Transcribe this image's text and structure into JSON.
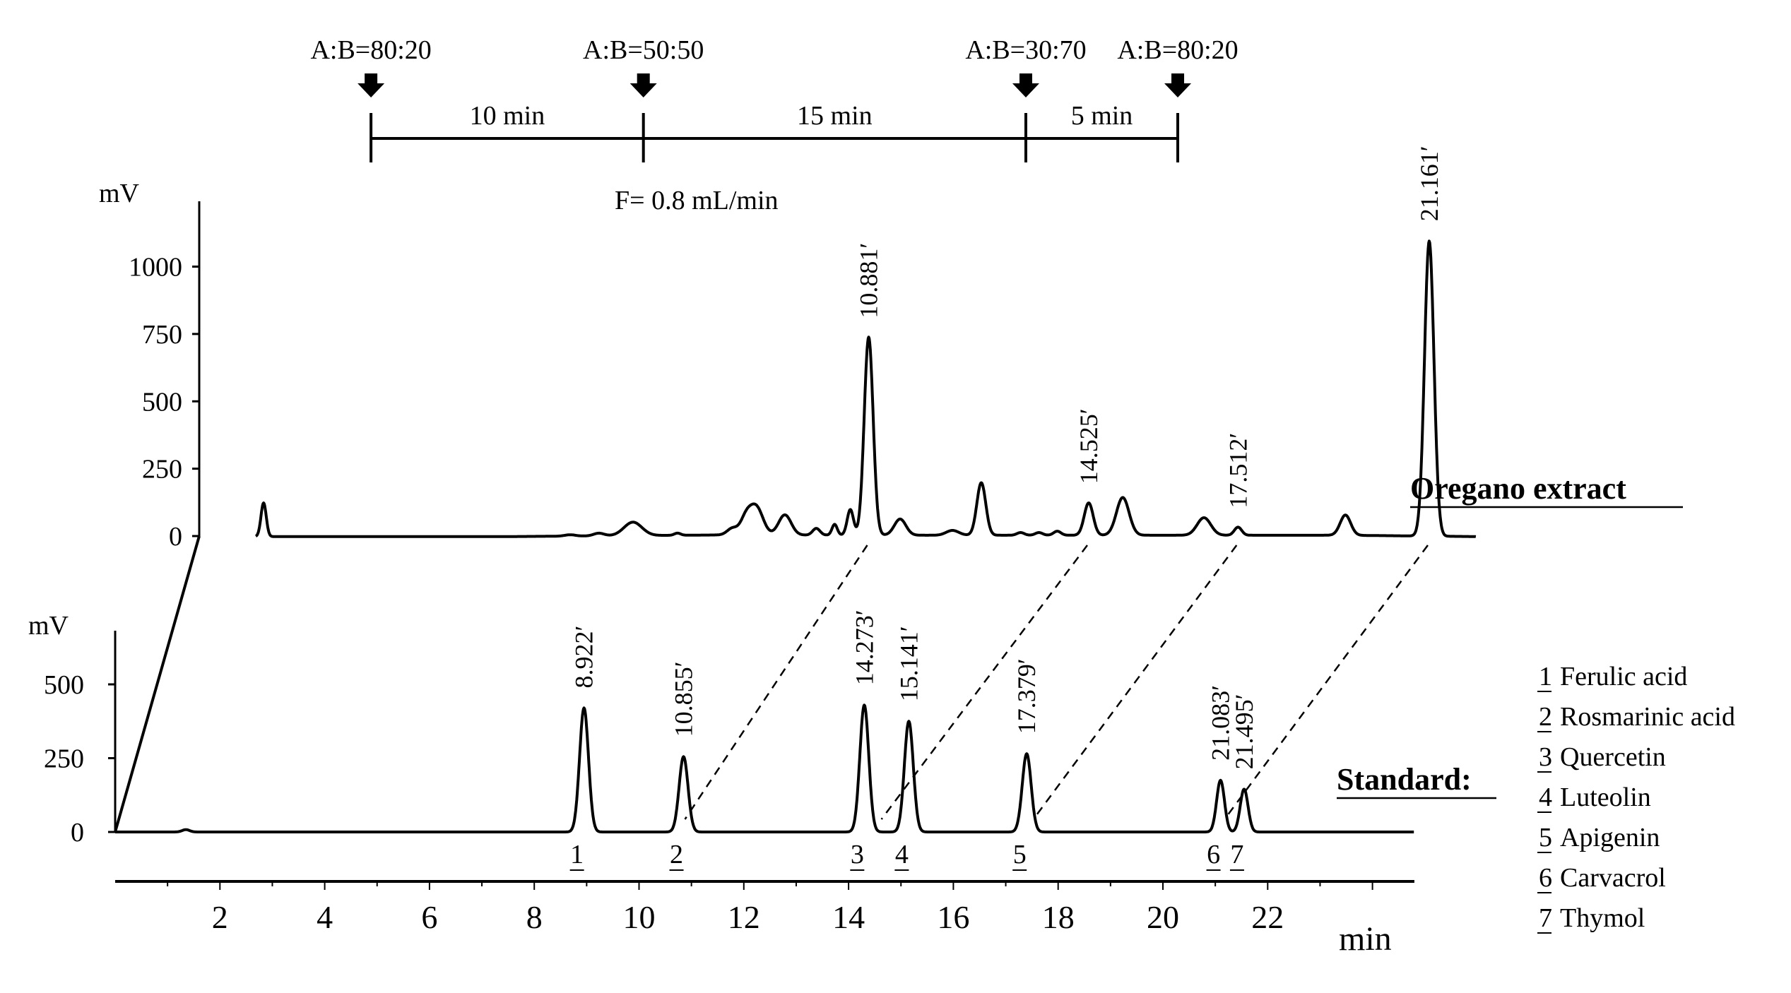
{
  "gradient": {
    "steps": [
      {
        "label": "A:B=80:20",
        "time": 3.4
      },
      {
        "label": "A:B=50:50",
        "time": 8.6
      },
      {
        "label": "A:B=30:70",
        "time": 15.9
      },
      {
        "label": "A:B=80:20",
        "time": 18.8
      }
    ],
    "durations": [
      {
        "label": "10 min",
        "mid": 6.0
      },
      {
        "label": "15 min",
        "mid": 12.25
      },
      {
        "label": "5 min",
        "mid": 17.35
      }
    ],
    "flow": "F=  0.8 mL/min"
  },
  "chart_data": {
    "type": "line",
    "xlabel": "min",
    "x_ticks": [
      2,
      4,
      6,
      8,
      10,
      12,
      14,
      16,
      18,
      20,
      22
    ],
    "x_range": [
      0,
      24.8
    ],
    "series": [
      {
        "name": "Oregano extract",
        "ylabel": "mV",
        "y_ticks": [
          0,
          250,
          500,
          750,
          1000
        ],
        "ylim": [
          0,
          1300
        ],
        "baseline_drift": [
          [
            1.2,
            -2
          ],
          [
            6,
            -2
          ],
          [
            10,
            4
          ],
          [
            14,
            3
          ],
          [
            22,
            3
          ],
          [
            24.5,
            -2
          ]
        ],
        "peaks": [
          {
            "rt": 1.35,
            "height": 125,
            "width": 0.05
          },
          {
            "rt": 7.2,
            "height": 5,
            "width": 0.1
          },
          {
            "rt": 7.75,
            "height": 10,
            "width": 0.1
          },
          {
            "rt": 8.4,
            "height": 50,
            "width": 0.17
          },
          {
            "rt": 9.25,
            "height": 8,
            "width": 0.06
          },
          {
            "rt": 10.3,
            "height": 25,
            "width": 0.1
          },
          {
            "rt": 10.55,
            "height": 55,
            "width": 0.1
          },
          {
            "rt": 10.75,
            "height": 105,
            "width": 0.13
          },
          {
            "rt": 11.3,
            "height": 75,
            "width": 0.12
          },
          {
            "rt": 11.9,
            "height": 25,
            "width": 0.07
          },
          {
            "rt": 12.25,
            "height": 40,
            "width": 0.05
          },
          {
            "rt": 12.55,
            "height": 95,
            "width": 0.06
          },
          {
            "rt": 12.9,
            "height": 735,
            "width": 0.085,
            "label": "10.881′"
          },
          {
            "rt": 13.5,
            "height": 60,
            "width": 0.11
          },
          {
            "rt": 14.5,
            "height": 18,
            "width": 0.12
          },
          {
            "rt": 15.05,
            "height": 195,
            "width": 0.085
          },
          {
            "rt": 15.8,
            "height": 10,
            "width": 0.07
          },
          {
            "rt": 16.15,
            "height": 10,
            "width": 0.07
          },
          {
            "rt": 16.5,
            "height": 15,
            "width": 0.07
          },
          {
            "rt": 17.1,
            "height": 120,
            "width": 0.085,
            "label": "14.525′"
          },
          {
            "rt": 17.75,
            "height": 140,
            "width": 0.12
          },
          {
            "rt": 19.3,
            "height": 65,
            "width": 0.13
          },
          {
            "rt": 19.95,
            "height": 30,
            "width": 0.07,
            "label": "17.512′"
          },
          {
            "rt": 22.0,
            "height": 75,
            "width": 0.1
          },
          {
            "rt": 23.6,
            "height": 1095,
            "width": 0.09,
            "label": "21.161′"
          }
        ]
      },
      {
        "name": "Standard:",
        "ylabel": "mV",
        "y_ticks": [
          0,
          250,
          500
        ],
        "ylim": [
          0,
          760
        ],
        "baseline_drift": [
          [
            0,
            0
          ],
          [
            24.8,
            0
          ]
        ],
        "peaks": [
          {
            "rt": 1.35,
            "height": 8,
            "width": 0.07
          },
          {
            "rt": 8.95,
            "height": 420,
            "width": 0.085,
            "label": "8.922′",
            "number": "1"
          },
          {
            "rt": 10.85,
            "height": 255,
            "width": 0.085,
            "label": "10.855′",
            "number": "2"
          },
          {
            "rt": 14.3,
            "height": 430,
            "width": 0.085,
            "label": "14.273′",
            "number": "3"
          },
          {
            "rt": 15.15,
            "height": 375,
            "width": 0.085,
            "label": "15.141′",
            "number": "4"
          },
          {
            "rt": 17.4,
            "height": 265,
            "width": 0.085,
            "label": "17.379′",
            "number": "5"
          },
          {
            "rt": 21.1,
            "height": 175,
            "width": 0.075,
            "label": "21.083′",
            "number": "6"
          },
          {
            "rt": 21.55,
            "height": 145,
            "width": 0.075,
            "label": "21.495′",
            "number": "7"
          }
        ]
      }
    ],
    "connections": [
      [
        12.9,
        10.85
      ],
      [
        17.1,
        14.6
      ],
      [
        19.95,
        17.5
      ],
      [
        23.6,
        21.15
      ]
    ]
  },
  "legend": [
    {
      "num": "1",
      "name": "Ferulic acid"
    },
    {
      "num": "2",
      "name": "Rosmarinic acid"
    },
    {
      "num": "3",
      "name": "Quercetin"
    },
    {
      "num": "4",
      "name": "Luteolin"
    },
    {
      "num": "5",
      "name": "Apigenin"
    },
    {
      "num": "6",
      "name": "Carvacrol"
    },
    {
      "num": "7",
      "name": "Thymol"
    }
  ]
}
